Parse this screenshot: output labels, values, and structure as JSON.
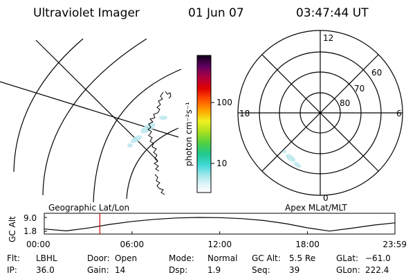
{
  "header": {
    "title": "Ultraviolet Imager",
    "date": "01 Jun 07",
    "time": "03:47:44 UT"
  },
  "colorbar": {
    "unit_label": "photon cm⁻²s⁻¹",
    "ticks": [
      "100",
      "10"
    ]
  },
  "polar": {
    "labels": {
      "top": "12",
      "left": "18",
      "right": "6",
      "bottom": "0"
    },
    "ring_labels": [
      "60",
      "70",
      "80"
    ]
  },
  "panels": {
    "left_caption": "Geographic Lat/Lon",
    "right_caption": "Apex MLat/MLT"
  },
  "altitude_plot": {
    "ylabel": "GC Alt",
    "yticks": [
      "9.0",
      "1.8"
    ],
    "xticks": [
      "00:00",
      "06:00",
      "12:00",
      "18:00",
      "23:59"
    ],
    "current_time_marker_hours": 3.8,
    "marker_color": "#cc0000",
    "curve": {
      "x_hours": [
        0,
        1.5,
        3,
        4.5,
        6,
        7.5,
        9,
        10.5,
        12,
        13.5,
        15,
        16.5,
        18,
        19.5,
        21,
        22.5,
        23.98
      ],
      "alt_Re": [
        3.0,
        2.0,
        3.5,
        5.4,
        6.9,
        8.0,
        8.7,
        9.0,
        8.9,
        8.4,
        7.4,
        5.8,
        3.6,
        1.9,
        3.4,
        5.0,
        6.2
      ]
    }
  },
  "footer": {
    "rows": [
      [
        {
          "label": "Flt:",
          "value": "LBHL"
        },
        {
          "label": "Door:",
          "value": "Open"
        },
        {
          "label": "Mode:",
          "value": "Normal"
        },
        {
          "label": "GC Alt:",
          "value": "5.5 Re"
        },
        {
          "label": "GLat:",
          "value": "−61.0"
        }
      ],
      [
        {
          "label": "IP:",
          "value": "36.0"
        },
        {
          "label": "Gain:",
          "value": "14"
        },
        {
          "label": "Dsp:",
          "value": "1.9"
        },
        {
          "label": "Seq:",
          "value": "39"
        },
        {
          "label": "GLon:",
          "value": "222.4"
        }
      ]
    ]
  }
}
